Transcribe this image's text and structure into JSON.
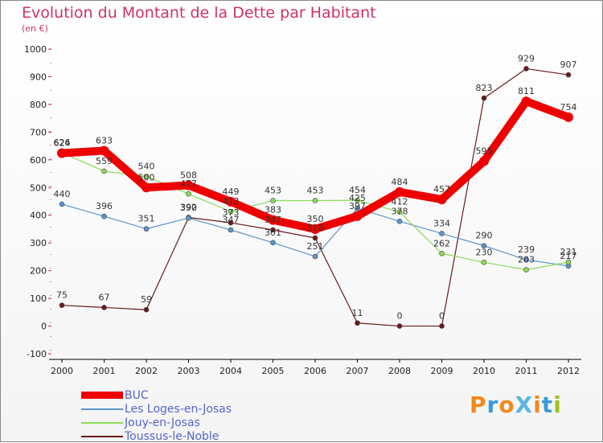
{
  "header": {
    "title": "Evolution du Montant de la Dette par Habitant",
    "subtitle": "(en €)"
  },
  "brand": {
    "text": "ProXiti"
  },
  "chart_data": {
    "type": "line",
    "title": "Evolution du Montant de la Dette par Habitant",
    "subtitle": "(en €)",
    "xlabel": "",
    "ylabel": "",
    "x": [
      "2000",
      "2001",
      "2002",
      "2003",
      "2004",
      "2005",
      "2006",
      "2007",
      "2008",
      "2009",
      "2010",
      "2011",
      "2012"
    ],
    "ylim": [
      -100,
      1000
    ],
    "yticks": [
      -100,
      0,
      100,
      200,
      300,
      400,
      500,
      600,
      700,
      800,
      900,
      1000
    ],
    "grid": false,
    "legend_position": "bottom",
    "series": [
      {
        "name": "Toussus-le-Noble",
        "color": "#6b1a1a",
        "values": [
          75,
          67,
          59,
          392,
          373,
          347,
          318,
          11,
          0,
          0,
          823,
          929,
          907
        ],
        "labels": [
          "75",
          "67",
          "59",
          "392",
          "373",
          "347",
          "318",
          "11",
          "0",
          "0",
          "823",
          "929",
          "907"
        ]
      },
      {
        "name": "Les Loges-en-Josas",
        "color": "#5a96cd",
        "values": [
          440,
          396,
          351,
          390,
          347,
          301,
          251,
          425,
          378,
          334,
          290,
          239,
          217
        ],
        "labels": [
          "440",
          "396",
          "351",
          "390",
          "347",
          "301",
          "251",
          "425",
          "378",
          "334",
          "290",
          "239",
          "217"
        ]
      },
      {
        "name": "Jouy-en-Josas",
        "color": "#88dd55",
        "values": [
          626,
          559,
          540,
          477,
          413,
          453,
          453,
          454,
          412,
          262,
          230,
          203,
          231
        ],
        "labels": [
          "626",
          "559",
          "540",
          "477",
          "413",
          "453",
          "453",
          "454",
          "412",
          "262",
          "230",
          "203",
          "231"
        ]
      },
      {
        "name": "BUC",
        "color": "#ee0000",
        "values": [
          624,
          633,
          500,
          508,
          449,
          383,
          350,
          397,
          484,
          457,
          595,
          811,
          754
        ],
        "labels": [
          "624",
          "633",
          "500",
          "508",
          "449",
          "383",
          "350",
          "397",
          "484",
          "457",
          "595",
          "811",
          "754"
        ]
      }
    ]
  }
}
